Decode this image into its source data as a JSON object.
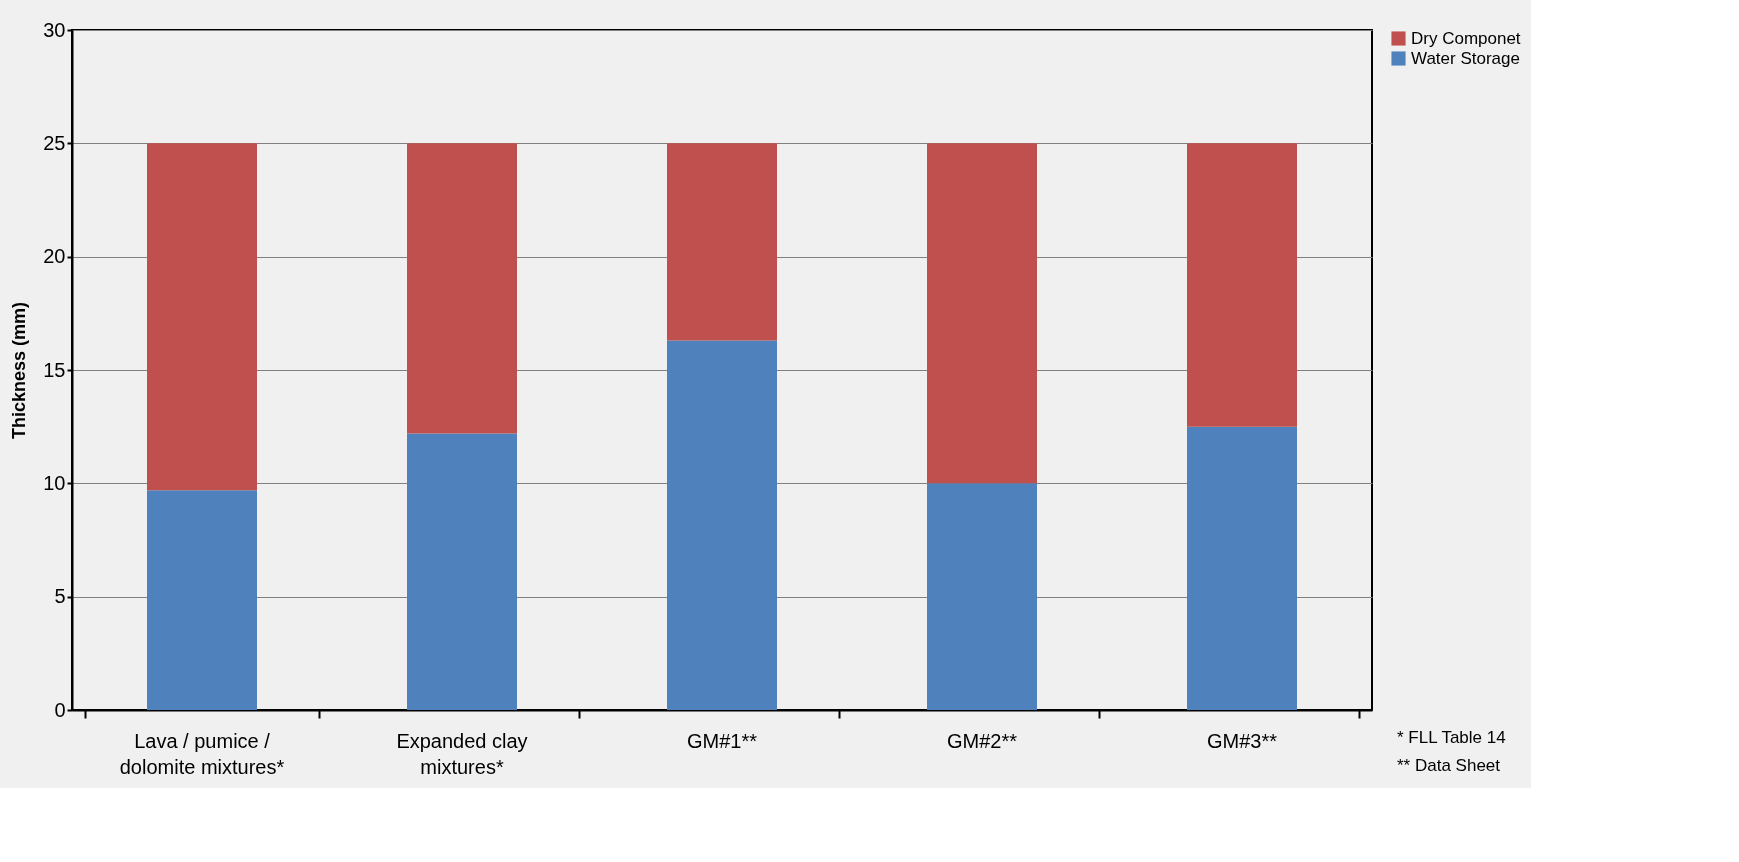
{
  "chart_data": {
    "type": "bar",
    "stacked": true,
    "ylabel": "Thickness (mm)",
    "categories": [
      "Lava / pumice / dolomite mixtures*",
      "Expanded clay mixtures*",
      "GM#1**",
      "GM#2**",
      "GM#3**"
    ],
    "series": [
      {
        "name": "Water Storage",
        "color": "#4f81bd",
        "values": [
          9.7,
          12.2,
          16.3,
          10.0,
          12.5
        ]
      },
      {
        "name": "Dry Componet",
        "color": "#c0504d",
        "values": [
          15.3,
          12.8,
          8.7,
          15.0,
          12.5
        ]
      }
    ],
    "ylim": [
      0,
      30
    ],
    "yticks": [
      0,
      5,
      10,
      15,
      20,
      25,
      30
    ],
    "grid": "y",
    "legend": "right",
    "annotations": [
      "*   FLL Table 14",
      "** Data Sheet"
    ]
  }
}
